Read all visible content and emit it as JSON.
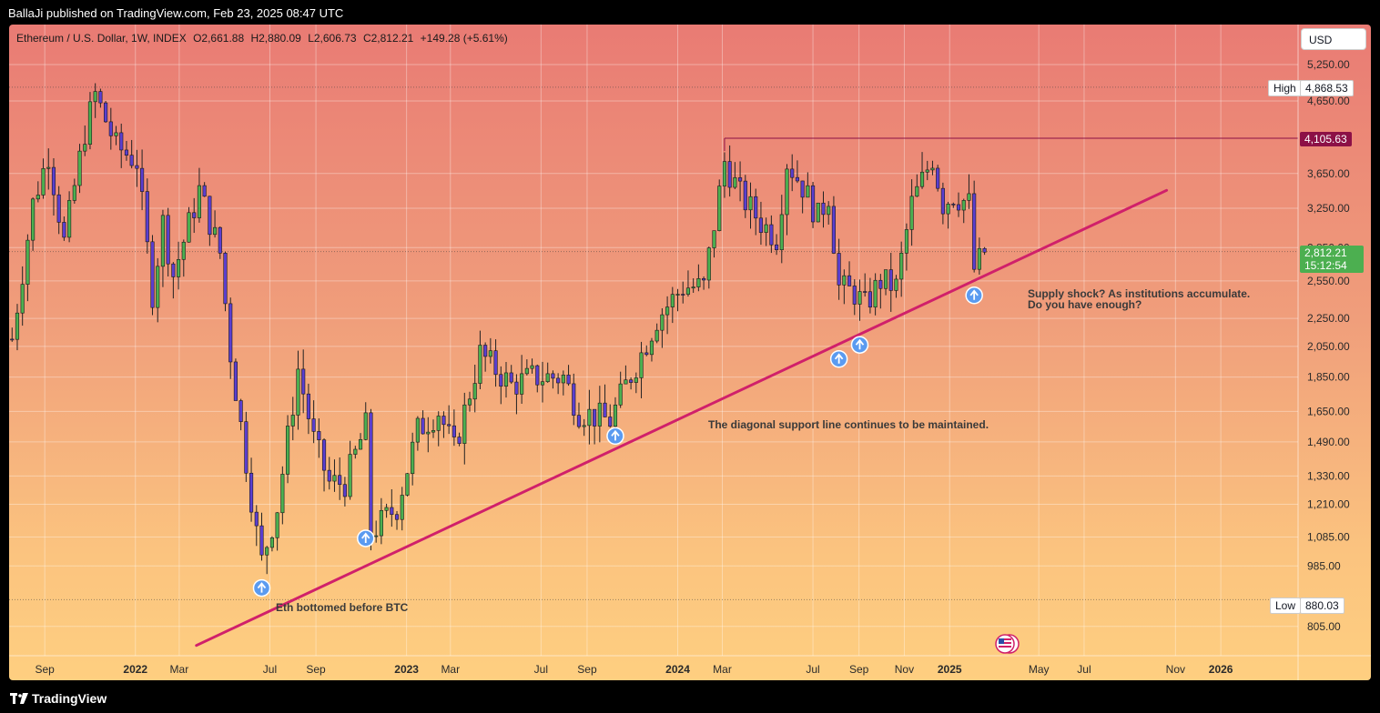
{
  "header": {
    "publisher_line": "BallaJi published on TradingView.com, Feb 23, 2025 08:47 UTC"
  },
  "footer": {
    "brand": "TradingView"
  },
  "legend": {
    "symbol": "Ethereum / U.S. Dollar, 1W, INDEX",
    "open": "O2,661.88",
    "high": "H2,880.09",
    "low": "L2,606.73",
    "close": "C2,812.21",
    "change": "+149.28 (+5.61%)"
  },
  "currency": "USD",
  "price_tags": {
    "high_label": "High",
    "high_value": "4,868.53",
    "level_value": "4,105.63",
    "current_value": "2,812.21",
    "countdown": "15:12:54",
    "low_label": "Low",
    "low_value": "880.03"
  },
  "annotations": {
    "bottom": "Eth bottomed before BTC",
    "support": "The diagonal support line continues to be maintained.",
    "supply_line1": "Supply shock? As institutions accumulate.",
    "supply_line2": "Do you have enough?"
  },
  "colors": {
    "bull": "#4caf50",
    "bear": "#5b3ecf",
    "trendline": "#d0206a",
    "arrow": "#5b9bf0",
    "current_tag": "#4caf50",
    "level_tag": "#8c1046"
  },
  "chart_data": {
    "type": "candlestick",
    "interval": "1W",
    "scale": "log",
    "y_ticks": [
      5250,
      4650,
      3650,
      3250,
      2850,
      2550,
      2250,
      2050,
      1850,
      1650,
      1490,
      1330,
      1210,
      1085,
      985,
      805
    ],
    "y_tick_labels": [
      "5,250.00",
      "4,650.00",
      "3,650.00",
      "3,250.00",
      "2,850.00",
      "2,550.00",
      "2,250.00",
      "2,050.00",
      "1,850.00",
      "1,650.00",
      "1,490.00",
      "1,330.00",
      "1,210.00",
      "1,085.00",
      "985.00",
      "805.00"
    ],
    "x_tick_labels": [
      "Sep",
      "2022",
      "Mar",
      "Jul",
      "Sep",
      "2023",
      "Mar",
      "Jul",
      "Sep",
      "2024",
      "Mar",
      "Jul",
      "Sep",
      "Nov",
      "2025",
      "May",
      "Jul",
      "Nov",
      "2026"
    ],
    "x_tick_dates": [
      "2021-09-01",
      "2022-01-01",
      "2022-03-01",
      "2022-07-01",
      "2022-09-01",
      "2023-01-01",
      "2023-03-01",
      "2023-07-01",
      "2023-09-01",
      "2024-01-01",
      "2024-03-01",
      "2024-07-01",
      "2024-09-01",
      "2024-11-01",
      "2025-01-01",
      "2025-05-01",
      "2025-07-01",
      "2025-11-01",
      "2026-01-01"
    ],
    "x_range": [
      "2021-07-15",
      "2026-04-15"
    ],
    "y_range": [
      730,
      6000
    ],
    "anchors": [
      [
        "2021-07-19",
        2100
      ],
      [
        "2021-08-16",
        3300
      ],
      [
        "2021-09-06",
        3900
      ],
      [
        "2021-09-27",
        2900
      ],
      [
        "2021-10-25",
        4200
      ],
      [
        "2021-11-08",
        4750
      ],
      [
        "2021-12-06",
        4000
      ],
      [
        "2022-01-03",
        3800
      ],
      [
        "2022-01-24",
        2450
      ],
      [
        "2022-02-07",
        3100
      ],
      [
        "2022-02-21",
        2600
      ],
      [
        "2022-03-28",
        3450
      ],
      [
        "2022-04-25",
        2800
      ],
      [
        "2022-05-09",
        2000
      ],
      [
        "2022-06-13",
        1100
      ],
      [
        "2022-06-20",
        1000
      ],
      [
        "2022-07-11",
        1200
      ],
      [
        "2022-08-08",
        1900
      ],
      [
        "2022-08-29",
        1500
      ],
      [
        "2022-09-19",
        1300
      ],
      [
        "2022-10-10",
        1300
      ],
      [
        "2022-11-07",
        1570
      ],
      [
        "2022-11-14",
        1100
      ],
      [
        "2022-12-19",
        1200
      ],
      [
        "2023-01-16",
        1550
      ],
      [
        "2023-02-13",
        1650
      ],
      [
        "2023-03-06",
        1450
      ],
      [
        "2023-04-10",
        2000
      ],
      [
        "2023-05-22",
        1800
      ],
      [
        "2023-06-19",
        1850
      ],
      [
        "2023-07-31",
        1850
      ],
      [
        "2023-08-21",
        1650
      ],
      [
        "2023-10-02",
        1600
      ],
      [
        "2023-10-23",
        1800
      ],
      [
        "2023-11-13",
        2000
      ],
      [
        "2023-12-04",
        2250
      ],
      [
        "2024-01-08",
        2500
      ],
      [
        "2024-02-05",
        2500
      ],
      [
        "2024-03-04",
        3800
      ],
      [
        "2024-03-25",
        3400
      ],
      [
        "2024-04-22",
        3100
      ],
      [
        "2024-05-13",
        2950
      ],
      [
        "2024-05-27",
        3800
      ],
      [
        "2024-06-17",
        3500
      ],
      [
        "2024-07-08",
        3150
      ],
      [
        "2024-07-22",
        3400
      ],
      [
        "2024-08-05",
        2500
      ],
      [
        "2024-08-26",
        2450
      ],
      [
        "2024-09-09",
        2350
      ],
      [
        "2024-09-30",
        2550
      ],
      [
        "2024-10-21",
        2500
      ],
      [
        "2024-11-11",
        3300
      ],
      [
        "2024-12-09",
        3850
      ],
      [
        "2024-12-23",
        3300
      ],
      [
        "2025-01-06",
        3400
      ],
      [
        "2025-01-27",
        3300
      ],
      [
        "2025-02-03",
        2650
      ],
      [
        "2025-02-17",
        2812
      ]
    ],
    "high": 4868.53,
    "low": 880.03,
    "last": 2812.21,
    "resistance_level": 4105.63,
    "trendline": {
      "from": [
        "2022-06-13",
        830
      ],
      "to": [
        "2025-10-20",
        3450
      ]
    },
    "support_touches": [
      [
        "2022-06-20",
        915
      ],
      [
        "2022-11-07",
        1080
      ],
      [
        "2023-10-09",
        1520
      ],
      [
        "2024-08-05",
        1965
      ],
      [
        "2024-09-02",
        2060
      ],
      [
        "2025-02-03",
        2430
      ]
    ]
  }
}
